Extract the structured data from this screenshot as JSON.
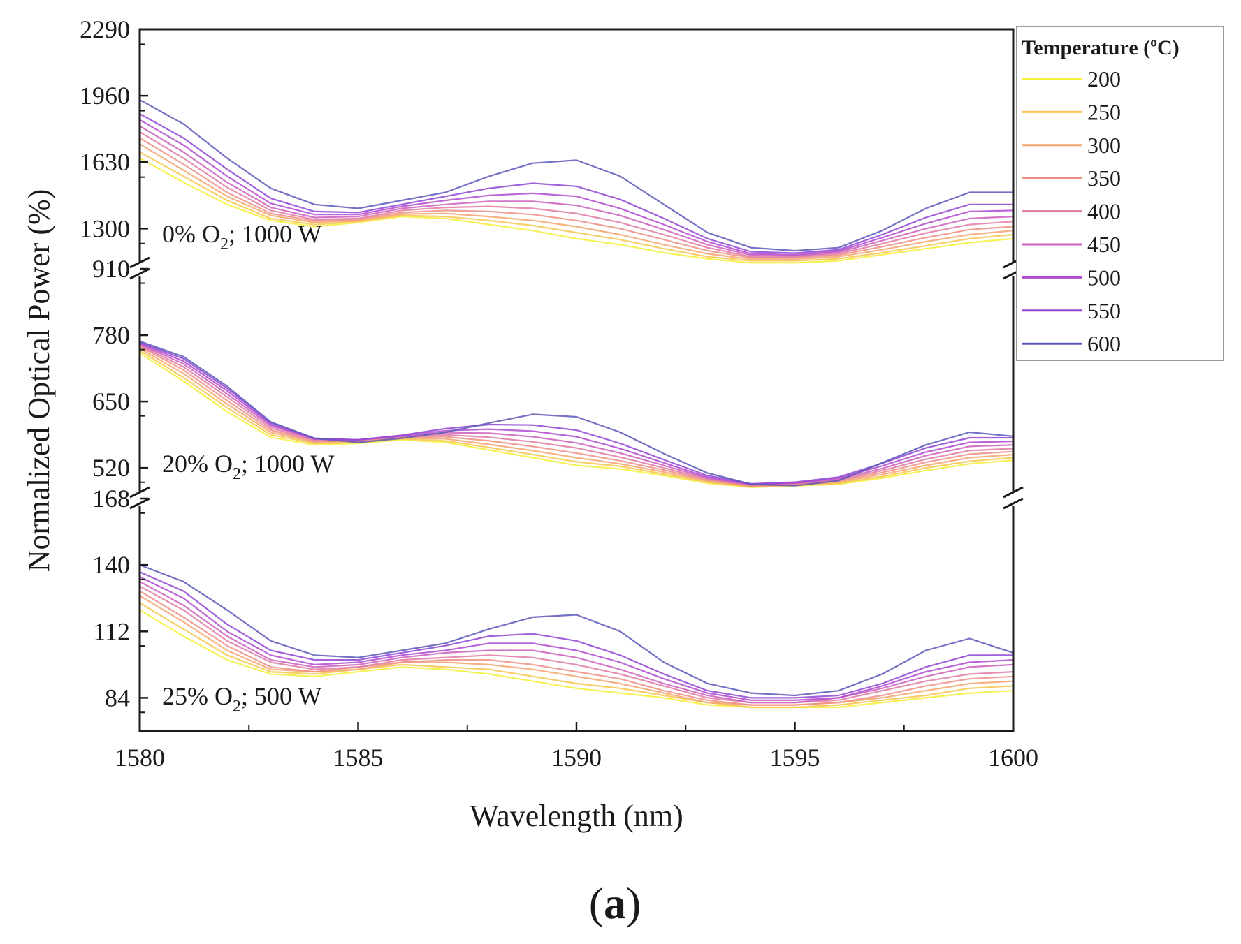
{
  "chart_data": {
    "type": "line",
    "title": "",
    "caption": {
      "open": "(",
      "letter": "a",
      "close": ")"
    },
    "xlabel": "Wavelength (nm)",
    "ylabel": "Normalized Optical Power (%)",
    "xlim": [
      1580,
      1600
    ],
    "x_ticks": [
      "1580",
      "1585",
      "1590",
      "1595",
      "1600"
    ],
    "legend": {
      "title": "Temperature (ºC)",
      "position": "right",
      "entries": [
        "200",
        "250",
        "300",
        "350",
        "400",
        "450",
        "500",
        "550",
        "600"
      ],
      "colors": [
        "#f5ef3a",
        "#f7c64f",
        "#f4a46e",
        "#ee8f86",
        "#e07aa3",
        "#cc5fbd",
        "#b04ad0",
        "#8f45d5",
        "#5a58b8"
      ]
    },
    "panels": [
      {
        "label_main": "0% O",
        "label_sub": "2",
        "label_tail": "; 1000 W",
        "ylim": [
          1100,
          2290
        ],
        "y_ticks": [
          "1300",
          "1630",
          "1960",
          "2290"
        ],
        "x": [
          1580,
          1581,
          1582,
          1583,
          1584,
          1585,
          1586,
          1587,
          1588,
          1589,
          1590,
          1591,
          1592,
          1593,
          1594,
          1595,
          1596,
          1597,
          1598,
          1599,
          1600
        ],
        "series": [
          {
            "name": "200",
            "values": [
              1650,
              1530,
              1420,
              1340,
              1310,
              1330,
              1360,
              1350,
              1320,
              1290,
              1250,
              1220,
              1180,
              1150,
              1130,
              1130,
              1140,
              1170,
              1200,
              1230,
              1250
            ]
          },
          {
            "name": "250",
            "values": [
              1680,
              1560,
              1440,
              1350,
              1320,
              1335,
              1365,
              1360,
              1340,
              1315,
              1280,
              1245,
              1200,
              1160,
              1140,
              1140,
              1150,
              1180,
              1215,
              1250,
              1270
            ]
          },
          {
            "name": "300",
            "values": [
              1720,
              1590,
              1460,
              1365,
              1330,
              1340,
              1372,
              1375,
              1360,
              1340,
              1310,
              1270,
              1220,
              1175,
              1148,
              1148,
              1160,
              1195,
              1235,
              1270,
              1290
            ]
          },
          {
            "name": "350",
            "values": [
              1750,
              1620,
              1480,
              1375,
              1338,
              1345,
              1380,
              1390,
              1385,
              1370,
              1340,
              1300,
              1245,
              1190,
              1155,
              1155,
              1168,
              1210,
              1255,
              1295,
              1310
            ]
          },
          {
            "name": "400",
            "values": [
              1780,
              1650,
              1505,
              1390,
              1345,
              1350,
              1390,
              1405,
              1410,
              1400,
              1375,
              1330,
              1270,
              1205,
              1160,
              1160,
              1175,
              1225,
              1278,
              1320,
              1335
            ]
          },
          {
            "name": "450",
            "values": [
              1810,
              1680,
              1530,
              1405,
              1355,
              1360,
              1400,
              1420,
              1435,
              1435,
              1415,
              1365,
              1295,
              1220,
              1168,
              1165,
              1182,
              1240,
              1300,
              1350,
              1360
            ]
          },
          {
            "name": "500",
            "values": [
              1840,
              1715,
              1560,
              1425,
              1370,
              1370,
              1410,
              1440,
              1465,
              1475,
              1460,
              1400,
              1320,
              1235,
              1175,
              1170,
              1188,
              1255,
              1325,
              1385,
              1390
            ]
          },
          {
            "name": "550",
            "values": [
              1870,
              1750,
              1595,
              1450,
              1385,
              1380,
              1420,
              1460,
              1500,
              1525,
              1510,
              1445,
              1350,
              1250,
              1185,
              1178,
              1195,
              1270,
              1355,
              1420,
              1420
            ]
          },
          {
            "name": "600",
            "values": [
              1940,
              1820,
              1650,
              1500,
              1420,
              1400,
              1440,
              1480,
              1560,
              1625,
              1640,
              1560,
              1420,
              1280,
              1205,
              1190,
              1205,
              1290,
              1400,
              1480,
              1480
            ]
          }
        ]
      },
      {
        "label_main": "20% O",
        "label_sub": "2",
        "label_tail": "; 1000 W",
        "ylim": [
          460,
          910
        ],
        "y_ticks": [
          "520",
          "650",
          "780",
          "910"
        ],
        "x": [
          1580,
          1581,
          1582,
          1583,
          1584,
          1585,
          1586,
          1587,
          1588,
          1589,
          1590,
          1591,
          1592,
          1593,
          1594,
          1595,
          1596,
          1597,
          1598,
          1599,
          1600
        ],
        "series": [
          {
            "name": "200",
            "values": [
              745,
              690,
              630,
              580,
              565,
              568,
              575,
              570,
              555,
              540,
              525,
              518,
              505,
              490,
              482,
              485,
              488,
              500,
              515,
              528,
              535
            ]
          },
          {
            "name": "250",
            "values": [
              750,
              697,
              638,
              585,
              568,
              570,
              577,
              573,
              560,
              546,
              532,
              523,
              508,
              492,
              483,
              486,
              490,
              503,
              520,
              533,
              540
            ]
          },
          {
            "name": "300",
            "values": [
              754,
              705,
              645,
              590,
              570,
              572,
              579,
              577,
              566,
              554,
              540,
              528,
              512,
              494,
              484,
              487,
              492,
              507,
              525,
              540,
              546
            ]
          },
          {
            "name": "350",
            "values": [
              758,
              712,
              652,
              594,
              572,
              573,
              580,
              581,
              573,
              562,
              549,
              534,
              516,
              496,
              485,
              488,
              494,
              511,
              531,
              547,
              552
            ]
          },
          {
            "name": "400",
            "values": [
              760,
              718,
              659,
              598,
              574,
              574,
              581,
              585,
              580,
              571,
              559,
              541,
              520,
              498,
              486,
              489,
              496,
              515,
              537,
              554,
              558
            ]
          },
          {
            "name": "450",
            "values": [
              762,
              724,
              665,
              602,
              576,
              575,
              582,
              589,
              588,
              581,
              569,
              549,
              525,
              500,
              487,
              490,
              498,
              519,
              544,
              562,
              565
            ]
          },
          {
            "name": "500",
            "values": [
              764,
              729,
              671,
              605,
              577,
              575,
              583,
              593,
              596,
              592,
              581,
              558,
              530,
              502,
              488,
              491,
              500,
              524,
              551,
              570,
              572
            ]
          },
          {
            "name": "550",
            "values": [
              766,
              734,
              676,
              608,
              578,
              575,
              584,
              597,
              605,
              604,
              594,
              568,
              536,
              505,
              489,
              492,
              502,
              529,
              559,
              579,
              579
            ]
          },
          {
            "name": "600",
            "values": [
              768,
              738,
              680,
              610,
              578,
              570,
              578,
              590,
              608,
              625,
              620,
              590,
              548,
              510,
              488,
              485,
              495,
              530,
              565,
              590,
              582
            ]
          }
        ]
      },
      {
        "label_main": "25% O",
        "label_sub": "2",
        "label_tail": "; 500 W",
        "ylim": [
          70,
          168
        ],
        "y_ticks": [
          "84",
          "112",
          "140",
          "168"
        ],
        "x": [
          1580,
          1581,
          1582,
          1583,
          1584,
          1585,
          1586,
          1587,
          1588,
          1589,
          1590,
          1591,
          1592,
          1593,
          1594,
          1595,
          1596,
          1597,
          1598,
          1599,
          1600
        ],
        "series": [
          {
            "name": "200",
            "values": [
              121,
              110,
              100,
              94,
              93,
              95,
              97,
              96,
              94,
              91,
              88,
              86,
              84,
              81,
              80,
              80,
              80,
              82,
              84,
              86,
              87
            ]
          },
          {
            "name": "250",
            "values": [
              124,
              113,
              102,
              95,
              94,
              96,
              98,
              97,
              96,
              93,
              90,
              88,
              85,
              82,
              80,
              80,
              81,
              83,
              85,
              88,
              89
            ]
          },
          {
            "name": "300",
            "values": [
              127,
              116,
              104,
              96,
              95,
              96,
              99,
              99,
              98,
              96,
              93,
              90,
              86,
              82,
              81,
              81,
              82,
              84,
              87,
              90,
              91
            ]
          },
          {
            "name": "350",
            "values": [
              129,
              118,
              106,
              97,
              95,
              97,
              99,
              100,
              100,
              98,
              95,
              92,
              87,
              83,
              81,
              81,
              82,
              85,
              89,
              92,
              93
            ]
          },
          {
            "name": "400",
            "values": [
              131,
              121,
              108,
              99,
              96,
              97,
              100,
              101,
              102,
              101,
              98,
              94,
              89,
              84,
              82,
              82,
              83,
              87,
              91,
              94,
              95
            ]
          },
          {
            "name": "450",
            "values": [
              133,
              123,
              110,
              100,
              97,
              98,
              101,
              103,
              104,
              104,
              101,
              96,
              90,
              85,
              82,
              82,
              84,
              88,
              93,
              97,
              98
            ]
          },
          {
            "name": "500",
            "values": [
              135,
              126,
              112,
              102,
              98,
              99,
              102,
              104,
              107,
              107,
              104,
              99,
              92,
              86,
              83,
              83,
              84,
              89,
              95,
              99,
              100
            ]
          },
          {
            "name": "550",
            "values": [
              137,
              129,
              115,
              104,
              100,
              100,
              103,
              106,
              110,
              111,
              108,
              102,
              94,
              87,
              84,
              84,
              85,
              90,
              97,
              102,
              102
            ]
          },
          {
            "name": "600",
            "values": [
              140,
              133,
              121,
              108,
              102,
              101,
              104,
              107,
              113,
              118,
              119,
              112,
              99,
              90,
              86,
              85,
              87,
              94,
              104,
              109,
              103
            ]
          }
        ]
      }
    ]
  }
}
